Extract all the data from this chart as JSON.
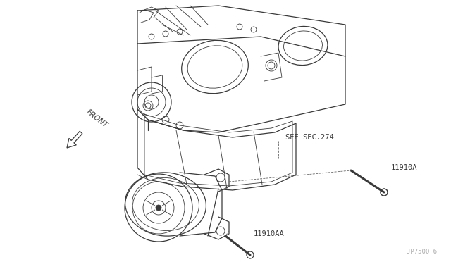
{
  "background_color": "#ffffff",
  "diagram_id": "JP7500 6",
  "labels": {
    "front_arrow": "FRONT",
    "see_sec": "SEE SEC.274",
    "part1": "11910A",
    "part2": "11910AA"
  },
  "colors": {
    "line": "#3a3a3a",
    "background": "#ffffff",
    "text": "#3a3a3a",
    "dashed_line": "#666666",
    "light_line": "#555555"
  },
  "lw_main": 0.9,
  "lw_detail": 0.6,
  "lw_heavy": 1.3
}
